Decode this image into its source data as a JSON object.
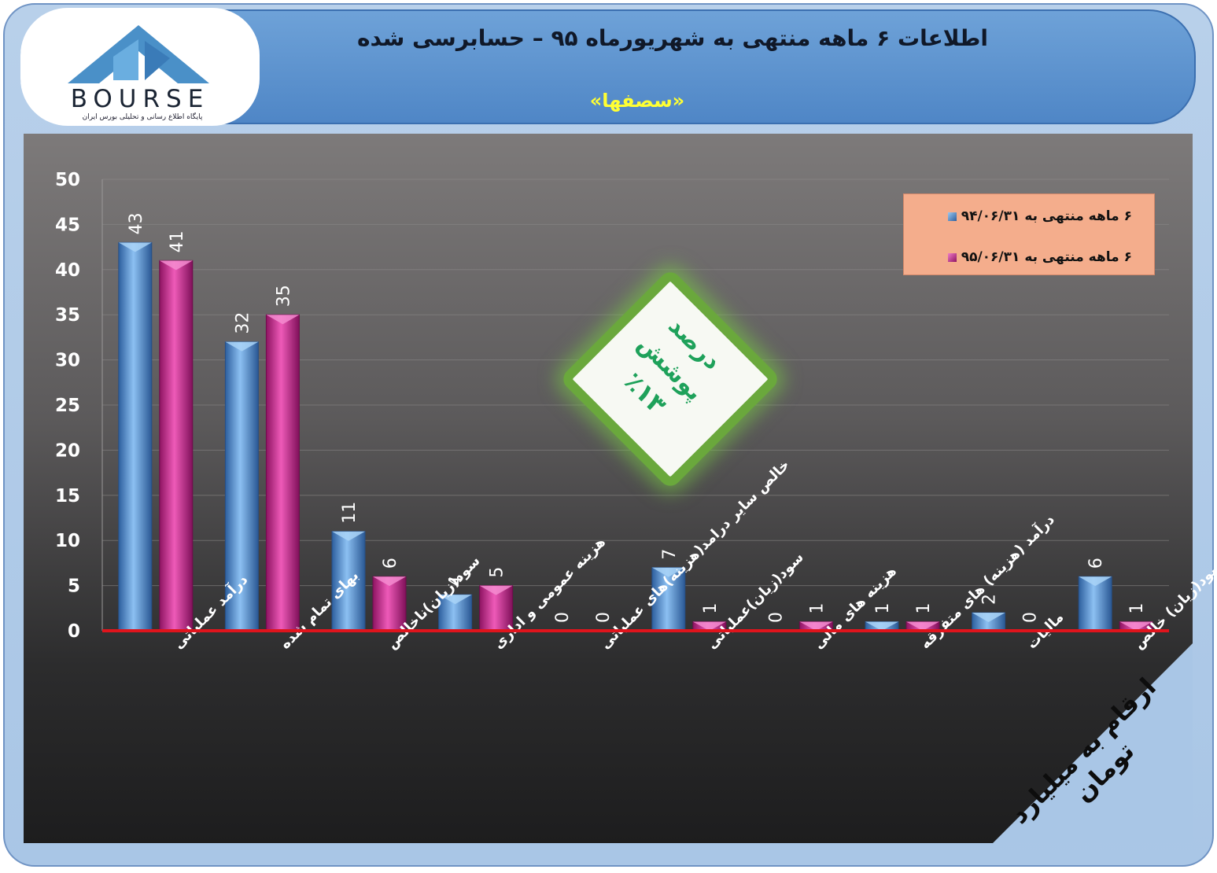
{
  "header": {
    "title": "اطلاعات ۶  ماهه منتهی به شهریورماه ۹۵ – حسابرسی شده",
    "subtitle": "«سصفها»"
  },
  "logo": {
    "name": "BOURSE",
    "tagline": "پایگاه اطلاع رسانی و تحلیلی بورس ایران"
  },
  "badge": {
    "label": "درصد پوشش",
    "value": "٪۱۳"
  },
  "units_note": "ارقام به میلیارد تومان",
  "legend": [
    {
      "label": "۶ ماهه منتهی به  ۹۴/۰۶/۳۱",
      "color": "#4f8fd8"
    },
    {
      "label": "۶ ماهه منتهی به  ۹۵/۰۶/۳۱",
      "color": "#c8288e"
    }
  ],
  "chart_data": {
    "type": "bar",
    "ylim": [
      0,
      50
    ],
    "yticks": [
      0,
      5,
      10,
      15,
      20,
      25,
      30,
      35,
      40,
      45,
      50
    ],
    "grid": true,
    "legend_position": "top-right",
    "categories": [
      "درآمد عملیاتی",
      "بهای تمام شده",
      "سود(زیان)ناخالص",
      "هزینه عمومی و اداری",
      "خالص سایر درامد(هزینه)های عملیاتی",
      "سود(زیان)عملیاتی",
      "هزینه های مالی",
      "درآمد (هزینه) های متفرقه",
      "مالیات",
      "سود(زیان) خالص"
    ],
    "series": [
      {
        "name": "۶ ماهه منتهی به  ۹۴/۰۶/۳۱",
        "color": "#4f8fd8",
        "values": [
          43,
          32,
          11,
          4,
          0,
          7,
          0,
          1,
          2,
          6
        ]
      },
      {
        "name": "۶ ماهه منتهی به  ۹۵/۰۶/۳۱",
        "color": "#c8288e",
        "values": [
          41,
          35,
          6,
          5,
          0,
          1,
          1,
          1,
          0,
          1
        ]
      }
    ]
  }
}
